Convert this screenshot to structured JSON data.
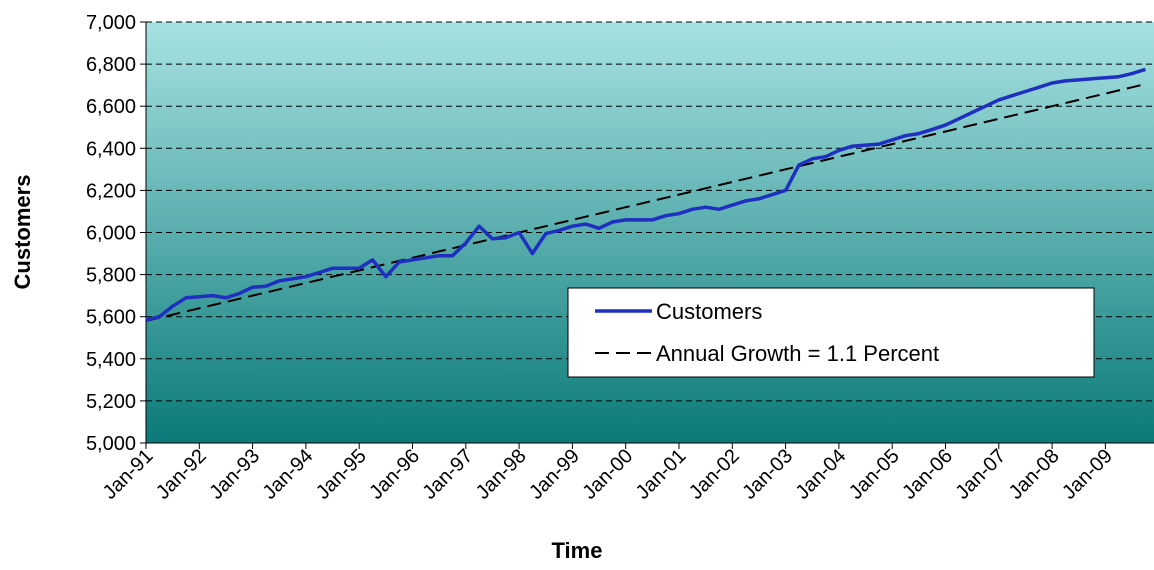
{
  "chart_data": {
    "type": "line",
    "xlabel": "Time",
    "ylabel": "Customers",
    "categories": [
      "Jan-91",
      null,
      null,
      null,
      "Jan-92",
      null,
      null,
      null,
      "Jan-93",
      null,
      null,
      null,
      "Jan-94",
      null,
      null,
      null,
      "Jan-95",
      null,
      null,
      null,
      "Jan-96",
      null,
      null,
      null,
      "Jan-97",
      null,
      null,
      null,
      "Jan-98",
      null,
      null,
      null,
      "Jan-99",
      null,
      null,
      null,
      "Jan-00",
      null,
      null,
      null,
      "Jan-01",
      null,
      null,
      null,
      "Jan-02",
      null,
      null,
      null,
      "Jan-03",
      null,
      null,
      null,
      "Jan-04",
      null,
      null,
      null,
      "Jan-05",
      null,
      null,
      null,
      "Jan-06",
      null,
      null,
      null,
      "Jan-07",
      null,
      null,
      null,
      "Jan-08",
      null,
      null,
      null,
      "Jan-09",
      null,
      null,
      null
    ],
    "series": [
      {
        "name": "Customers",
        "color": "#1f2fbf",
        "dash": false,
        "values": [
          5585,
          5600,
          5650,
          5690,
          5695,
          5700,
          5690,
          5710,
          5740,
          5745,
          5770,
          5780,
          5790,
          5810,
          5830,
          5830,
          5830,
          5870,
          5790,
          5860,
          5870,
          5880,
          5890,
          5890,
          5950,
          6030,
          5970,
          5975,
          6000,
          5900,
          5995,
          6010,
          6030,
          6040,
          6020,
          6050,
          6060,
          6060,
          6060,
          6080,
          6090,
          6110,
          6120,
          6110,
          6130,
          6150,
          6160,
          6180,
          6200,
          6320,
          6350,
          6360,
          6390,
          6410,
          6415,
          6420,
          6440,
          6460,
          6470,
          6490,
          6510,
          6540,
          6570,
          6600,
          6630,
          6650,
          6670,
          6690,
          6710,
          6720,
          6725,
          6730,
          6735,
          6740,
          6755,
          6775
        ]
      },
      {
        "name": "Annual Growth = 1.1 Percent",
        "color": "#000000",
        "dash": true,
        "values": [
          5580,
          5595,
          5610,
          5625,
          5640,
          5655,
          5670,
          5685,
          5700,
          5715,
          5730,
          5745,
          5760,
          5775,
          5790,
          5805,
          5820,
          5835,
          5850,
          5865,
          5880,
          5895,
          5910,
          5925,
          5940,
          5955,
          5970,
          5985,
          6000,
          6015,
          6030,
          6045,
          6060,
          6075,
          6090,
          6105,
          6120,
          6135,
          6150,
          6165,
          6180,
          6195,
          6210,
          6225,
          6240,
          6255,
          6270,
          6285,
          6300,
          6315,
          6330,
          6345,
          6360,
          6375,
          6390,
          6405,
          6420,
          6435,
          6450,
          6465,
          6480,
          6495,
          6510,
          6525,
          6540,
          6555,
          6570,
          6585,
          6600,
          6615,
          6630,
          6645,
          6660,
          6675,
          6690,
          6705
        ]
      }
    ],
    "ylim": [
      5000,
      7000
    ],
    "yticks": [
      {
        "value": 5000,
        "label": "5,000"
      },
      {
        "value": 5200,
        "label": "5,200"
      },
      {
        "value": 5400,
        "label": "5,400"
      },
      {
        "value": 5600,
        "label": "5,600"
      },
      {
        "value": 5800,
        "label": "5,800"
      },
      {
        "value": 6000,
        "label": "6,000"
      },
      {
        "value": 6200,
        "label": "6,200"
      },
      {
        "value": 6400,
        "label": "6,400"
      },
      {
        "value": 6600,
        "label": "6,600"
      },
      {
        "value": 6800,
        "label": "6,800"
      },
      {
        "value": 7000,
        "label": "7,000"
      }
    ],
    "grid": true
  }
}
